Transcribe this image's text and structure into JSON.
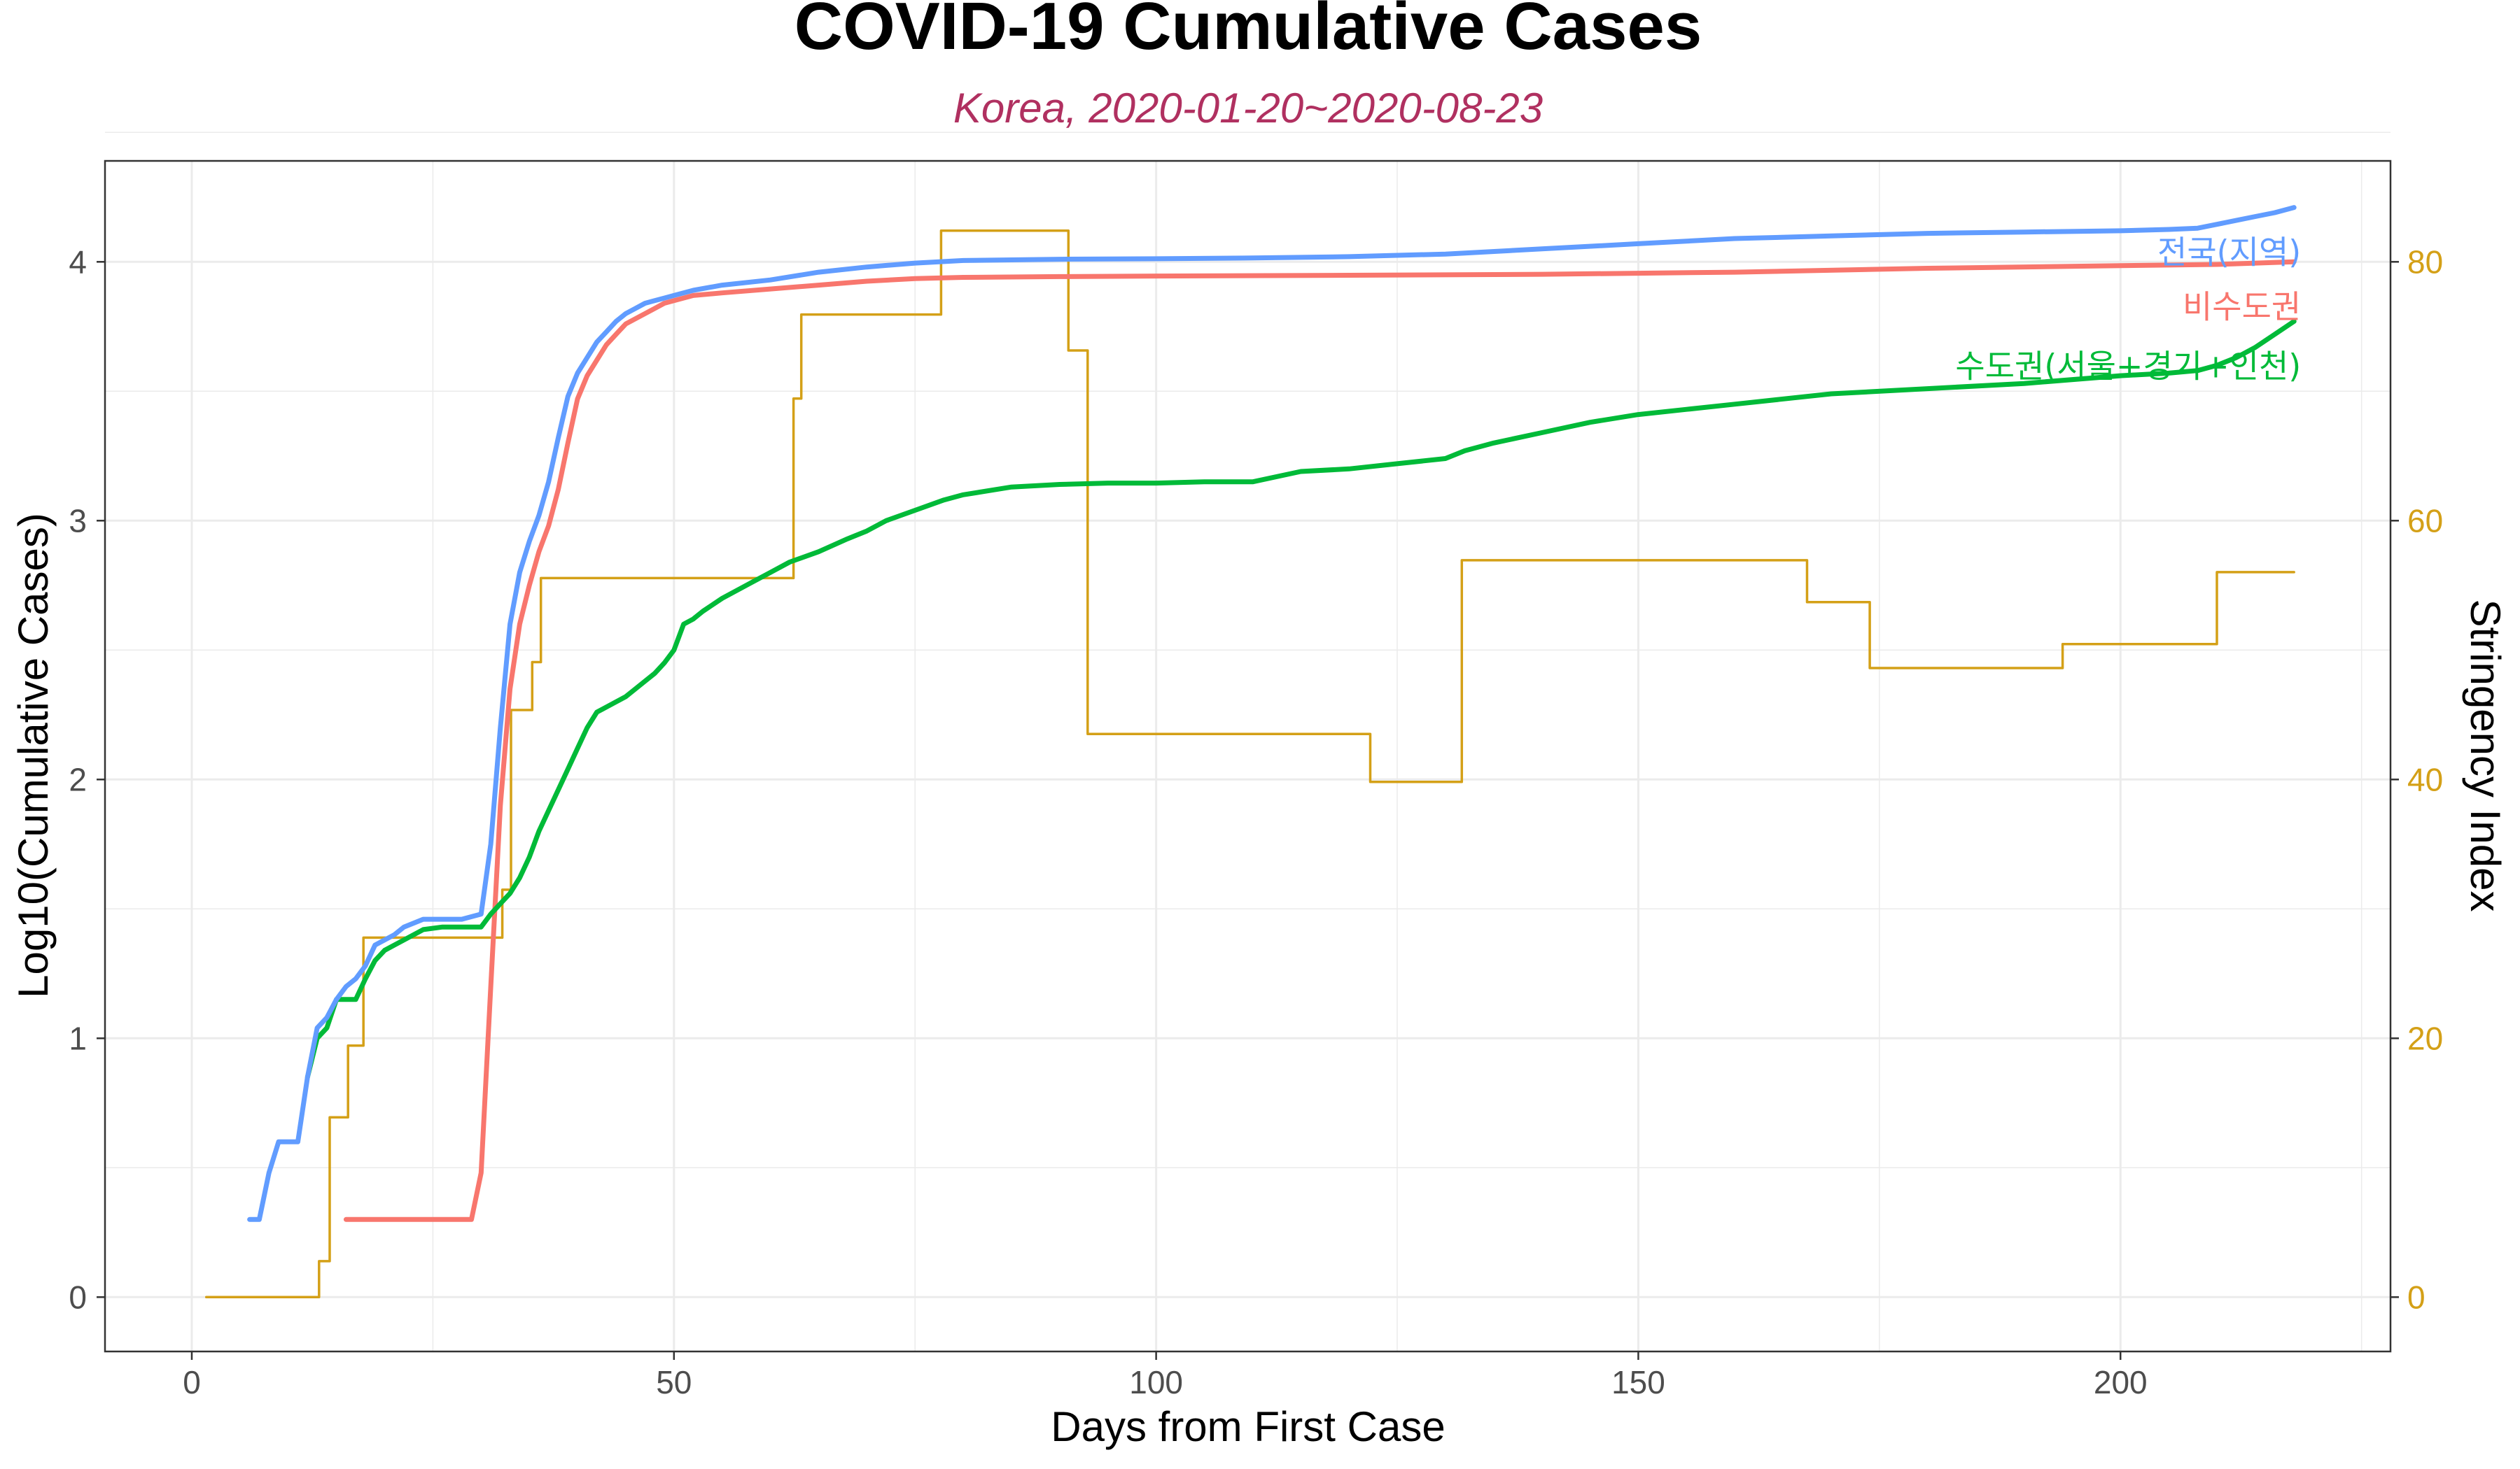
{
  "chart_data": {
    "type": "line",
    "title": "COVID-19 Cumulative Cases",
    "subtitle": "Korea, 2020-01-20~2020-08-23",
    "xlabel": "Days from First Case",
    "ylabel": "Log10(Cumulative Cases)",
    "y2label": "Stringency Index",
    "xlim": [
      -9,
      228
    ],
    "ylim": [
      -0.21,
      4.39
    ],
    "y2lim": [
      -4.2,
      87.8
    ],
    "x_ticks": [
      0,
      50,
      100,
      150,
      200
    ],
    "x_tick_labels": [
      "0",
      "50",
      "100",
      "150",
      "200"
    ],
    "y_ticks": [
      0,
      1,
      2,
      3,
      4
    ],
    "y_tick_labels": [
      "0",
      "1",
      "2",
      "3",
      "4"
    ],
    "y2_ticks": [
      0,
      20,
      40,
      60,
      80
    ],
    "y2_tick_labels": [
      "0",
      "20",
      "40",
      "60",
      "80"
    ],
    "grid": true,
    "colors": {
      "series_1": "#619CFF",
      "series_2": "#F8766D",
      "series_3": "#00BA38",
      "stringency": "#D4A017",
      "subtitle": "#B03060",
      "grid": "#EBEBEB",
      "panel_border": "#333333"
    },
    "series": [
      {
        "name": "전국(지역)",
        "axis": "left",
        "x": [
          6,
          7,
          8,
          9,
          10,
          11,
          12,
          13,
          14,
          15,
          16,
          17,
          18,
          19,
          20,
          21,
          22,
          24,
          26,
          28,
          30,
          31,
          32,
          33,
          34,
          35,
          36,
          37,
          38,
          39,
          40,
          41,
          42,
          43,
          44,
          45,
          46,
          47,
          48,
          49,
          50,
          52,
          55,
          60,
          65,
          70,
          75,
          80,
          90,
          100,
          110,
          120,
          130,
          140,
          150,
          160,
          170,
          180,
          190,
          200,
          205,
          208,
          210,
          212,
          214,
          216,
          218
        ],
        "values": [
          0.3,
          0.3,
          0.48,
          0.6,
          0.6,
          0.6,
          0.85,
          1.04,
          1.08,
          1.15,
          1.2,
          1.23,
          1.28,
          1.36,
          1.38,
          1.4,
          1.43,
          1.46,
          1.46,
          1.46,
          1.48,
          1.75,
          2.2,
          2.6,
          2.8,
          2.92,
          3.02,
          3.15,
          3.32,
          3.48,
          3.57,
          3.63,
          3.69,
          3.73,
          3.77,
          3.8,
          3.82,
          3.84,
          3.85,
          3.86,
          3.87,
          3.89,
          3.91,
          3.93,
          3.96,
          3.98,
          3.995,
          4.005,
          4.01,
          4.012,
          4.015,
          4.02,
          4.03,
          4.05,
          4.07,
          4.09,
          4.1,
          4.11,
          4.115,
          4.12,
          4.125,
          4.13,
          4.145,
          4.16,
          4.175,
          4.19,
          4.21
        ]
      },
      {
        "name": "비수도권",
        "axis": "left",
        "x": [
          16,
          17,
          20,
          25,
          29,
          30,
          31,
          32,
          33,
          34,
          35,
          36,
          37,
          38,
          39,
          40,
          41,
          42,
          43,
          44,
          45,
          46,
          47,
          48,
          49,
          50,
          52,
          55,
          60,
          65,
          70,
          75,
          80,
          90,
          100,
          120,
          140,
          160,
          180,
          200,
          210,
          218
        ],
        "values": [
          0.3,
          0.3,
          0.3,
          0.3,
          0.3,
          0.48,
          1.2,
          1.9,
          2.35,
          2.6,
          2.75,
          2.88,
          2.98,
          3.12,
          3.3,
          3.47,
          3.56,
          3.62,
          3.68,
          3.72,
          3.76,
          3.78,
          3.8,
          3.82,
          3.84,
          3.85,
          3.87,
          3.88,
          3.895,
          3.91,
          3.925,
          3.935,
          3.94,
          3.943,
          3.945,
          3.948,
          3.952,
          3.96,
          3.975,
          3.985,
          3.99,
          4.0
        ]
      },
      {
        "name": "수도권(서울+경기+인천)",
        "axis": "left",
        "x": [
          12,
          13,
          14,
          15,
          16,
          17,
          18,
          19,
          20,
          21,
          22,
          24,
          26,
          28,
          30,
          31,
          32,
          33,
          34,
          35,
          36,
          37,
          38,
          39,
          40,
          41,
          42,
          43,
          44,
          45,
          46,
          47,
          48,
          49,
          50,
          51,
          52,
          53,
          55,
          58,
          60,
          62,
          65,
          68,
          70,
          72,
          75,
          78,
          80,
          85,
          90,
          95,
          100,
          105,
          110,
          115,
          120,
          125,
          130,
          132,
          135,
          140,
          145,
          150,
          155,
          160,
          170,
          180,
          190,
          200,
          205,
          208,
          210,
          212,
          214,
          216,
          218
        ],
        "values": [
          0.85,
          1.0,
          1.04,
          1.15,
          1.15,
          1.15,
          1.23,
          1.3,
          1.34,
          1.36,
          1.38,
          1.42,
          1.43,
          1.43,
          1.43,
          1.48,
          1.52,
          1.56,
          1.62,
          1.7,
          1.8,
          1.88,
          1.96,
          2.04,
          2.12,
          2.2,
          2.26,
          2.28,
          2.3,
          2.32,
          2.35,
          2.38,
          2.41,
          2.45,
          2.5,
          2.6,
          2.62,
          2.65,
          2.7,
          2.76,
          2.8,
          2.84,
          2.88,
          2.93,
          2.96,
          3.0,
          3.04,
          3.08,
          3.1,
          3.13,
          3.14,
          3.145,
          3.145,
          3.15,
          3.15,
          3.19,
          3.2,
          3.22,
          3.24,
          3.27,
          3.3,
          3.34,
          3.38,
          3.41,
          3.43,
          3.45,
          3.49,
          3.51,
          3.53,
          3.56,
          3.57,
          3.58,
          3.6,
          3.63,
          3.67,
          3.72,
          3.77
        ]
      },
      {
        "name": "",
        "axis": "right",
        "step": true,
        "x": [
          1.5,
          12.2,
          13.2,
          14.3,
          15.2,
          16.2,
          17.8,
          32.2,
          33.1,
          35.3,
          36.2,
          62.0,
          62.4,
          63.2,
          76.4,
          77.7,
          89.9,
          90.9,
          92.9,
          122.2,
          131.7,
          167.5,
          174.0,
          194.0,
          210.0,
          218.0
        ],
        "values": [
          0,
          0,
          2.78,
          13.89,
          13.89,
          19.44,
          27.78,
          31.48,
          45.37,
          49.07,
          55.56,
          55.56,
          69.44,
          75.93,
          75.93,
          82.41,
          82.41,
          73.15,
          43.52,
          39.81,
          56.94,
          53.7,
          48.61,
          50.46,
          56.02,
          56.02
        ]
      }
    ],
    "series_labels": [
      {
        "text": "전국(지역)",
        "series": 0
      },
      {
        "text": "비수도권",
        "series": 1
      },
      {
        "text": "수도권(서울+경기+인천)",
        "series": 2
      }
    ]
  }
}
